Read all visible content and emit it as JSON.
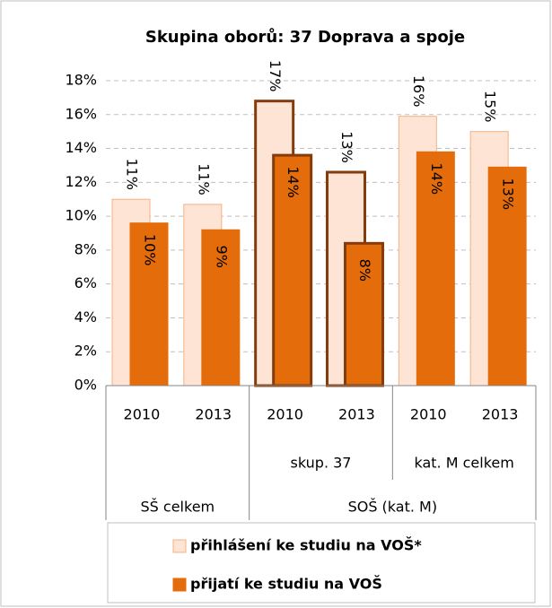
{
  "chart_data": {
    "type": "bar",
    "title": "Skupina oborů: 37 Doprava a spoje",
    "categories": [
      "2010",
      "2013",
      "2010",
      "2013",
      "2010",
      "2013"
    ],
    "groups": [
      {
        "name": "SŠ celkem",
        "subgroups": [
          null
        ]
      },
      {
        "name": "SOŠ (kat. M)",
        "subgroups": [
          "skup. 37",
          "kat. M celkem"
        ]
      }
    ],
    "series": [
      {
        "name": "přihlášení ke studiu na VOŠ*",
        "color": "#fde4d4",
        "edgecolors": [
          "#f4b183",
          "#f4b183",
          "#843c0c",
          "#843c0c",
          "#f4b183",
          "#f4b183"
        ],
        "edgewidths": [
          1,
          1,
          3,
          3,
          1,
          1
        ],
        "values": [
          11.0,
          10.7,
          16.8,
          12.6,
          15.9,
          15.0
        ],
        "value_labels": [
          "11%",
          "11%",
          "17%",
          "13%",
          "16%",
          "15%"
        ]
      },
      {
        "name": "přijatí ke studiu na VOŠ",
        "color": "#e46c0a",
        "edgecolors": [
          "#e46c0a",
          "#e46c0a",
          "#843c0c",
          "#843c0c",
          "#e46c0a",
          "#e46c0a"
        ],
        "edgewidths": [
          1,
          1,
          3,
          3,
          1,
          1
        ],
        "values": [
          9.6,
          9.2,
          13.6,
          8.4,
          13.8,
          12.9
        ],
        "value_labels": [
          "10%",
          "9%",
          "14%",
          "8%",
          "14%",
          "13%"
        ]
      }
    ],
    "ylim": [
      0,
      18
    ],
    "yticks": [
      {
        "value": 0,
        "label": "0%"
      },
      {
        "value": 2,
        "label": "2%"
      },
      {
        "value": 4,
        "label": "4%"
      },
      {
        "value": 6,
        "label": "6%"
      },
      {
        "value": 8,
        "label": "8%"
      },
      {
        "value": 10,
        "label": "10%"
      },
      {
        "value": 12,
        "label": "12%"
      },
      {
        "value": 14,
        "label": "14%"
      },
      {
        "value": 16,
        "label": "16%"
      },
      {
        "value": 18,
        "label": "18%"
      }
    ],
    "grid": true
  }
}
